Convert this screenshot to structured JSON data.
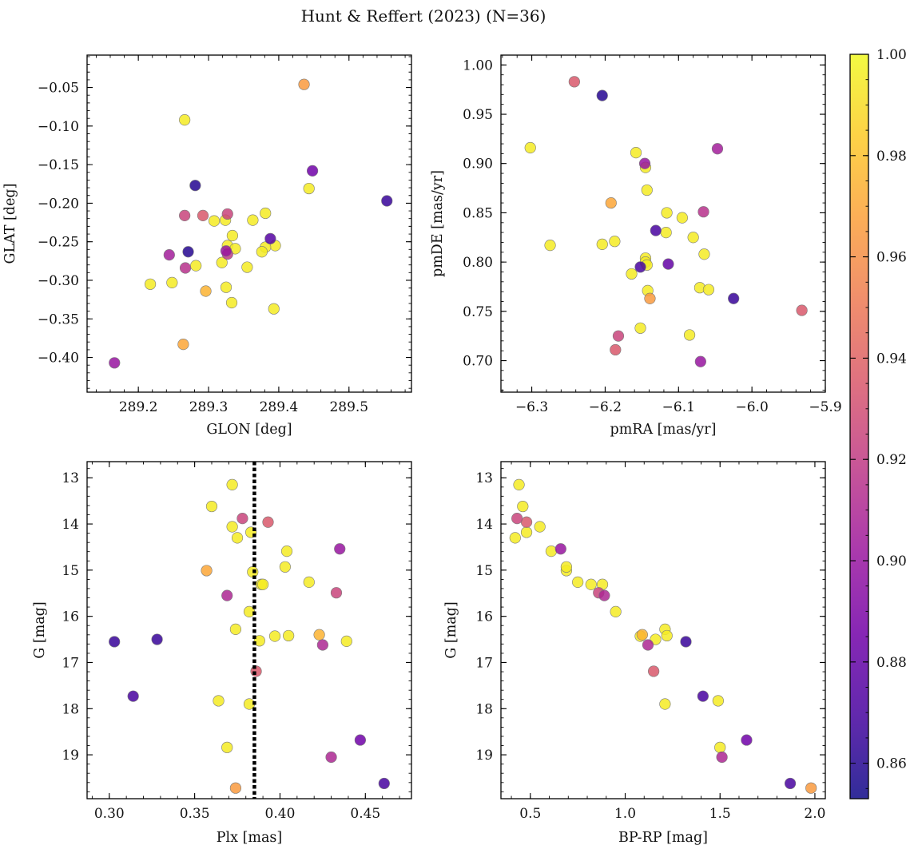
{
  "figure": {
    "title": "Hunt & Reffert (2023) (N=36)"
  },
  "colors": {
    "marker_edge": "#7a7a7a",
    "cmap": [
      "#0d0887",
      "#46039f",
      "#7201a8",
      "#9c179e",
      "#bd3786",
      "#d8576b",
      "#ed7953",
      "#fb9f3a",
      "#fdca26",
      "#f0f921"
    ],
    "vline": "#000000"
  },
  "colorbar": {
    "vmin": 0.853,
    "vmax": 1.0,
    "ticks": [
      0.86,
      0.88,
      0.9,
      0.92,
      0.94,
      0.96,
      0.98,
      1.0
    ],
    "tick_labels": [
      "0.86",
      "0.88",
      "0.90",
      "0.92",
      "0.94",
      "0.96",
      "0.98",
      "1.00"
    ]
  },
  "chart_data": [
    {
      "type": "scatter",
      "id": "glon-glat",
      "xlabel": "GLON [deg]",
      "ylabel": "GLAT [deg]",
      "xlim": [
        289.127,
        289.589
      ],
      "ylim": [
        -0.445,
        -0.008
      ],
      "xticks": [
        289.2,
        289.3,
        289.4,
        289.5
      ],
      "xtick_labels": [
        "289.2",
        "289.3",
        "289.4",
        "289.5"
      ],
      "yticks": [
        -0.4,
        -0.35,
        -0.3,
        -0.25,
        -0.2,
        -0.15,
        -0.1,
        -0.05
      ],
      "ytick_labels": [
        "−0.40",
        "−0.35",
        "−0.30",
        "−0.25",
        "−0.20",
        "−0.15",
        "−0.10",
        "−0.05"
      ],
      "points": [
        {
          "x": 289.436,
          "y": -0.046,
          "c": 0.965
        },
        {
          "x": 289.266,
          "y": -0.092,
          "c": 0.995
        },
        {
          "x": 289.448,
          "y": -0.158,
          "c": 0.885
        },
        {
          "x": 289.281,
          "y": -0.177,
          "c": 0.86
        },
        {
          "x": 289.554,
          "y": -0.197,
          "c": 0.865
        },
        {
          "x": 289.443,
          "y": -0.181,
          "c": 0.995
        },
        {
          "x": 289.266,
          "y": -0.216,
          "c": 0.925
        },
        {
          "x": 289.292,
          "y": -0.216,
          "c": 0.935
        },
        {
          "x": 289.327,
          "y": -0.214,
          "c": 0.925
        },
        {
          "x": 289.381,
          "y": -0.213,
          "c": 0.995
        },
        {
          "x": 289.363,
          "y": -0.222,
          "c": 0.995
        },
        {
          "x": 289.308,
          "y": -0.223,
          "c": 0.995
        },
        {
          "x": 289.324,
          "y": -0.222,
          "c": 0.995
        },
        {
          "x": 289.388,
          "y": -0.246,
          "c": 0.875
        },
        {
          "x": 289.334,
          "y": -0.242,
          "c": 0.995
        },
        {
          "x": 289.327,
          "y": -0.255,
          "c": 0.995
        },
        {
          "x": 289.395,
          "y": -0.255,
          "c": 0.995
        },
        {
          "x": 289.381,
          "y": -0.257,
          "c": 0.995
        },
        {
          "x": 289.338,
          "y": -0.259,
          "c": 0.995
        },
        {
          "x": 289.376,
          "y": -0.263,
          "c": 0.995
        },
        {
          "x": 289.271,
          "y": -0.263,
          "c": 0.86
        },
        {
          "x": 289.325,
          "y": -0.262,
          "c": 0.9
        },
        {
          "x": 289.327,
          "y": -0.266,
          "c": 0.92
        },
        {
          "x": 289.244,
          "y": -0.267,
          "c": 0.905
        },
        {
          "x": 289.355,
          "y": -0.283,
          "c": 0.995
        },
        {
          "x": 289.282,
          "y": -0.281,
          "c": 0.995
        },
        {
          "x": 289.267,
          "y": -0.284,
          "c": 0.915
        },
        {
          "x": 289.319,
          "y": -0.277,
          "c": 0.995
        },
        {
          "x": 289.217,
          "y": -0.305,
          "c": 0.995
        },
        {
          "x": 289.248,
          "y": -0.303,
          "c": 0.995
        },
        {
          "x": 289.325,
          "y": -0.309,
          "c": 0.995
        },
        {
          "x": 289.296,
          "y": -0.314,
          "c": 0.975
        },
        {
          "x": 289.333,
          "y": -0.329,
          "c": 0.995
        },
        {
          "x": 289.393,
          "y": -0.337,
          "c": 0.995
        },
        {
          "x": 289.264,
          "y": -0.383,
          "c": 0.97
        },
        {
          "x": 289.166,
          "y": -0.407,
          "c": 0.9
        }
      ]
    },
    {
      "type": "scatter",
      "id": "pm",
      "xlabel": "pmRA [mas/yr]",
      "ylabel": "pmDE [mas/yr]",
      "xlim": [
        -6.342,
        -5.9
      ],
      "ylim": [
        0.668,
        1.01
      ],
      "xticks": [
        -6.3,
        -6.2,
        -6.1,
        -6.0,
        -5.9
      ],
      "xtick_labels": [
        "−6.3",
        "−6.2",
        "−6.1",
        "−6.0",
        "−5.9"
      ],
      "yticks": [
        0.7,
        0.75,
        0.8,
        0.85,
        0.9,
        0.95,
        1.0
      ],
      "ytick_labels": [
        "0.70",
        "0.75",
        "0.80",
        "0.85",
        "0.90",
        "0.95",
        "1.00"
      ],
      "points": [
        {
          "x": -6.242,
          "y": 0.983,
          "c": 0.935
        },
        {
          "x": -6.204,
          "y": 0.969,
          "c": 0.86
        },
        {
          "x": -6.302,
          "y": 0.916,
          "c": 0.995
        },
        {
          "x": -6.158,
          "y": 0.911,
          "c": 0.995
        },
        {
          "x": -6.047,
          "y": 0.915,
          "c": 0.905
        },
        {
          "x": -6.146,
          "y": 0.9,
          "c": 0.9
        },
        {
          "x": -6.145,
          "y": 0.896,
          "c": 0.995
        },
        {
          "x": -6.143,
          "y": 0.873,
          "c": 0.995
        },
        {
          "x": -6.192,
          "y": 0.86,
          "c": 0.97
        },
        {
          "x": -6.066,
          "y": 0.851,
          "c": 0.915
        },
        {
          "x": -6.116,
          "y": 0.85,
          "c": 0.995
        },
        {
          "x": -6.095,
          "y": 0.845,
          "c": 0.995
        },
        {
          "x": -6.131,
          "y": 0.832,
          "c": 0.87
        },
        {
          "x": -6.117,
          "y": 0.83,
          "c": 0.995
        },
        {
          "x": -6.08,
          "y": 0.825,
          "c": 0.995
        },
        {
          "x": -6.275,
          "y": 0.817,
          "c": 0.995
        },
        {
          "x": -6.204,
          "y": 0.818,
          "c": 0.995
        },
        {
          "x": -6.187,
          "y": 0.821,
          "c": 0.995
        },
        {
          "x": -6.065,
          "y": 0.808,
          "c": 0.995
        },
        {
          "x": -6.145,
          "y": 0.804,
          "c": 0.995
        },
        {
          "x": -6.145,
          "y": 0.8,
          "c": 0.995
        },
        {
          "x": -6.114,
          "y": 0.798,
          "c": 0.88
        },
        {
          "x": -6.152,
          "y": 0.795,
          "c": 0.87
        },
        {
          "x": -6.143,
          "y": 0.797,
          "c": 0.995
        },
        {
          "x": -6.164,
          "y": 0.788,
          "c": 0.995
        },
        {
          "x": -6.071,
          "y": 0.774,
          "c": 0.995
        },
        {
          "x": -6.059,
          "y": 0.772,
          "c": 0.995
        },
        {
          "x": -6.142,
          "y": 0.771,
          "c": 0.995
        },
        {
          "x": -6.139,
          "y": 0.763,
          "c": 0.965
        },
        {
          "x": -6.025,
          "y": 0.763,
          "c": 0.865
        },
        {
          "x": -5.932,
          "y": 0.751,
          "c": 0.935
        },
        {
          "x": -6.152,
          "y": 0.733,
          "c": 0.995
        },
        {
          "x": -6.182,
          "y": 0.725,
          "c": 0.925
        },
        {
          "x": -6.085,
          "y": 0.726,
          "c": 0.995
        },
        {
          "x": -6.186,
          "y": 0.711,
          "c": 0.935
        },
        {
          "x": -6.07,
          "y": 0.699,
          "c": 0.9
        }
      ]
    },
    {
      "type": "scatter",
      "id": "plx-g",
      "xlabel": "Plx [mas]",
      "ylabel": "G [mag]",
      "xlim": [
        0.287,
        0.477
      ],
      "ylim": [
        19.95,
        12.65
      ],
      "y_inverted": true,
      "xticks": [
        0.3,
        0.35,
        0.4,
        0.45
      ],
      "xtick_labels": [
        "0.30",
        "0.35",
        "0.40",
        "0.45"
      ],
      "yticks": [
        13,
        14,
        15,
        16,
        17,
        18,
        19
      ],
      "ytick_labels": [
        "13",
        "14",
        "15",
        "16",
        "17",
        "18",
        "19"
      ],
      "vline": {
        "x": 0.385,
        "style": "dotted"
      },
      "points": [
        {
          "x": 0.372,
          "y": 13.15,
          "c": 0.995
        },
        {
          "x": 0.36,
          "y": 13.62,
          "c": 0.995
        },
        {
          "x": 0.378,
          "y": 13.88,
          "c": 0.925
        },
        {
          "x": 0.393,
          "y": 13.96,
          "c": 0.935
        },
        {
          "x": 0.372,
          "y": 14.06,
          "c": 0.995
        },
        {
          "x": 0.383,
          "y": 14.18,
          "c": 0.995
        },
        {
          "x": 0.375,
          "y": 14.3,
          "c": 0.995
        },
        {
          "x": 0.435,
          "y": 14.54,
          "c": 0.9
        },
        {
          "x": 0.404,
          "y": 14.59,
          "c": 0.995
        },
        {
          "x": 0.357,
          "y": 15.01,
          "c": 0.97
        },
        {
          "x": 0.384,
          "y": 15.04,
          "c": 0.995
        },
        {
          "x": 0.403,
          "y": 14.93,
          "c": 0.995
        },
        {
          "x": 0.417,
          "y": 15.26,
          "c": 0.995
        },
        {
          "x": 0.389,
          "y": 15.31,
          "c": 0.995
        },
        {
          "x": 0.39,
          "y": 15.31,
          "c": 0.995
        },
        {
          "x": 0.433,
          "y": 15.49,
          "c": 0.925
        },
        {
          "x": 0.369,
          "y": 15.55,
          "c": 0.91
        },
        {
          "x": 0.382,
          "y": 15.9,
          "c": 0.995
        },
        {
          "x": 0.374,
          "y": 16.28,
          "c": 0.995
        },
        {
          "x": 0.423,
          "y": 16.4,
          "c": 0.975
        },
        {
          "x": 0.397,
          "y": 16.43,
          "c": 0.995
        },
        {
          "x": 0.405,
          "y": 16.42,
          "c": 0.995
        },
        {
          "x": 0.303,
          "y": 16.55,
          "c": 0.865
        },
        {
          "x": 0.328,
          "y": 16.5,
          "c": 0.865
        },
        {
          "x": 0.388,
          "y": 16.53,
          "c": 0.995
        },
        {
          "x": 0.439,
          "y": 16.54,
          "c": 0.995
        },
        {
          "x": 0.425,
          "y": 16.62,
          "c": 0.91
        },
        {
          "x": 0.386,
          "y": 17.19,
          "c": 0.935
        },
        {
          "x": 0.314,
          "y": 17.73,
          "c": 0.87
        },
        {
          "x": 0.364,
          "y": 17.83,
          "c": 0.995
        },
        {
          "x": 0.382,
          "y": 17.9,
          "c": 0.995
        },
        {
          "x": 0.447,
          "y": 18.68,
          "c": 0.885
        },
        {
          "x": 0.369,
          "y": 18.84,
          "c": 0.995
        },
        {
          "x": 0.43,
          "y": 19.05,
          "c": 0.91
        },
        {
          "x": 0.461,
          "y": 19.62,
          "c": 0.87
        },
        {
          "x": 0.374,
          "y": 19.72,
          "c": 0.965
        }
      ]
    },
    {
      "type": "scatter",
      "id": "color-mag",
      "xlabel": "BP-RP [mag]",
      "ylabel": "G [mag]",
      "xlim": [
        0.345,
        2.055
      ],
      "ylim": [
        19.95,
        12.65
      ],
      "y_inverted": true,
      "xticks": [
        0.5,
        1.0,
        1.5,
        2.0
      ],
      "xtick_labels": [
        "0.5",
        "1.0",
        "1.5",
        "2.0"
      ],
      "yticks": [
        13,
        14,
        15,
        16,
        17,
        18,
        19
      ],
      "ytick_labels": [
        "13",
        "14",
        "15",
        "16",
        "17",
        "18",
        "19"
      ],
      "points": [
        {
          "x": 0.44,
          "y": 13.15,
          "c": 0.995
        },
        {
          "x": 0.46,
          "y": 13.62,
          "c": 0.995
        },
        {
          "x": 0.43,
          "y": 13.88,
          "c": 0.925
        },
        {
          "x": 0.48,
          "y": 13.96,
          "c": 0.935
        },
        {
          "x": 0.55,
          "y": 14.06,
          "c": 0.995
        },
        {
          "x": 0.48,
          "y": 14.18,
          "c": 0.995
        },
        {
          "x": 0.42,
          "y": 14.3,
          "c": 0.995
        },
        {
          "x": 0.66,
          "y": 14.54,
          "c": 0.9
        },
        {
          "x": 0.61,
          "y": 14.59,
          "c": 0.995
        },
        {
          "x": 0.69,
          "y": 15.01,
          "c": 0.995
        },
        {
          "x": 0.69,
          "y": 14.93,
          "c": 0.995
        },
        {
          "x": 0.75,
          "y": 15.26,
          "c": 0.995
        },
        {
          "x": 0.82,
          "y": 15.31,
          "c": 0.995
        },
        {
          "x": 0.88,
          "y": 15.31,
          "c": 0.995
        },
        {
          "x": 0.86,
          "y": 15.49,
          "c": 0.925
        },
        {
          "x": 0.89,
          "y": 15.55,
          "c": 0.91
        },
        {
          "x": 0.95,
          "y": 15.9,
          "c": 0.995
        },
        {
          "x": 1.21,
          "y": 16.28,
          "c": 0.995
        },
        {
          "x": 1.09,
          "y": 16.4,
          "c": 0.975
        },
        {
          "x": 1.08,
          "y": 16.43,
          "c": 0.995
        },
        {
          "x": 1.22,
          "y": 16.42,
          "c": 0.995
        },
        {
          "x": 1.32,
          "y": 16.55,
          "c": 0.865
        },
        {
          "x": 1.16,
          "y": 16.5,
          "c": 0.995
        },
        {
          "x": 1.12,
          "y": 16.62,
          "c": 0.91
        },
        {
          "x": 1.15,
          "y": 17.19,
          "c": 0.935
        },
        {
          "x": 1.41,
          "y": 17.73,
          "c": 0.87
        },
        {
          "x": 1.49,
          "y": 17.83,
          "c": 0.995
        },
        {
          "x": 1.21,
          "y": 17.9,
          "c": 0.995
        },
        {
          "x": 1.64,
          "y": 18.68,
          "c": 0.885
        },
        {
          "x": 1.5,
          "y": 18.84,
          "c": 0.995
        },
        {
          "x": 1.51,
          "y": 19.05,
          "c": 0.91
        },
        {
          "x": 1.87,
          "y": 19.62,
          "c": 0.87
        },
        {
          "x": 1.98,
          "y": 19.72,
          "c": 0.965
        }
      ]
    }
  ]
}
